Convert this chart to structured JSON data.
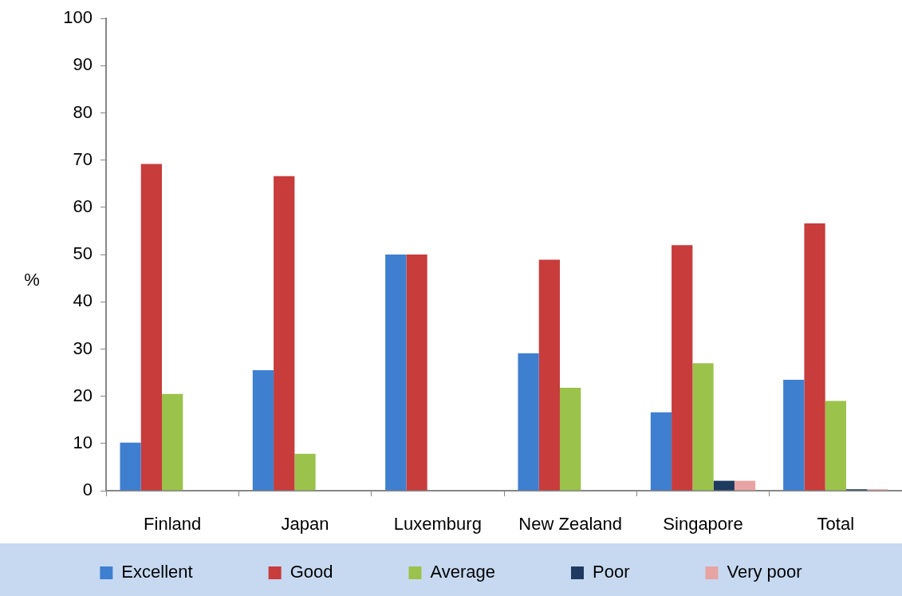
{
  "chart_data": {
    "type": "bar",
    "ylabel": "%",
    "categories": [
      "Finland",
      "Japan",
      "Luxemburg",
      "New Zealand",
      "Singapore",
      "Total"
    ],
    "series": [
      {
        "name": "Excellent",
        "color": "#3f7fcf",
        "values": [
          10.2,
          25.5,
          50,
          29.1,
          16.6,
          23.5
        ]
      },
      {
        "name": "Good",
        "color": "#c83c3c",
        "values": [
          69.2,
          66.6,
          50,
          48.9,
          52,
          56.6
        ]
      },
      {
        "name": "Average",
        "color": "#9bc24a",
        "values": [
          20.5,
          7.8,
          0,
          21.8,
          27,
          19
        ]
      },
      {
        "name": "Poor",
        "color": "#1f3a5f",
        "values": [
          0,
          0,
          0,
          0,
          2.1,
          0.3
        ]
      },
      {
        "name": "Very poor",
        "color": "#e8a3a3",
        "values": [
          0,
          0,
          0,
          0,
          2.1,
          0.3
        ]
      }
    ],
    "ylim": [
      0,
      100
    ],
    "yticks": [
      0,
      10,
      20,
      30,
      40,
      50,
      60,
      70,
      80,
      90,
      100
    ],
    "grid": false,
    "legend": "bottom"
  }
}
